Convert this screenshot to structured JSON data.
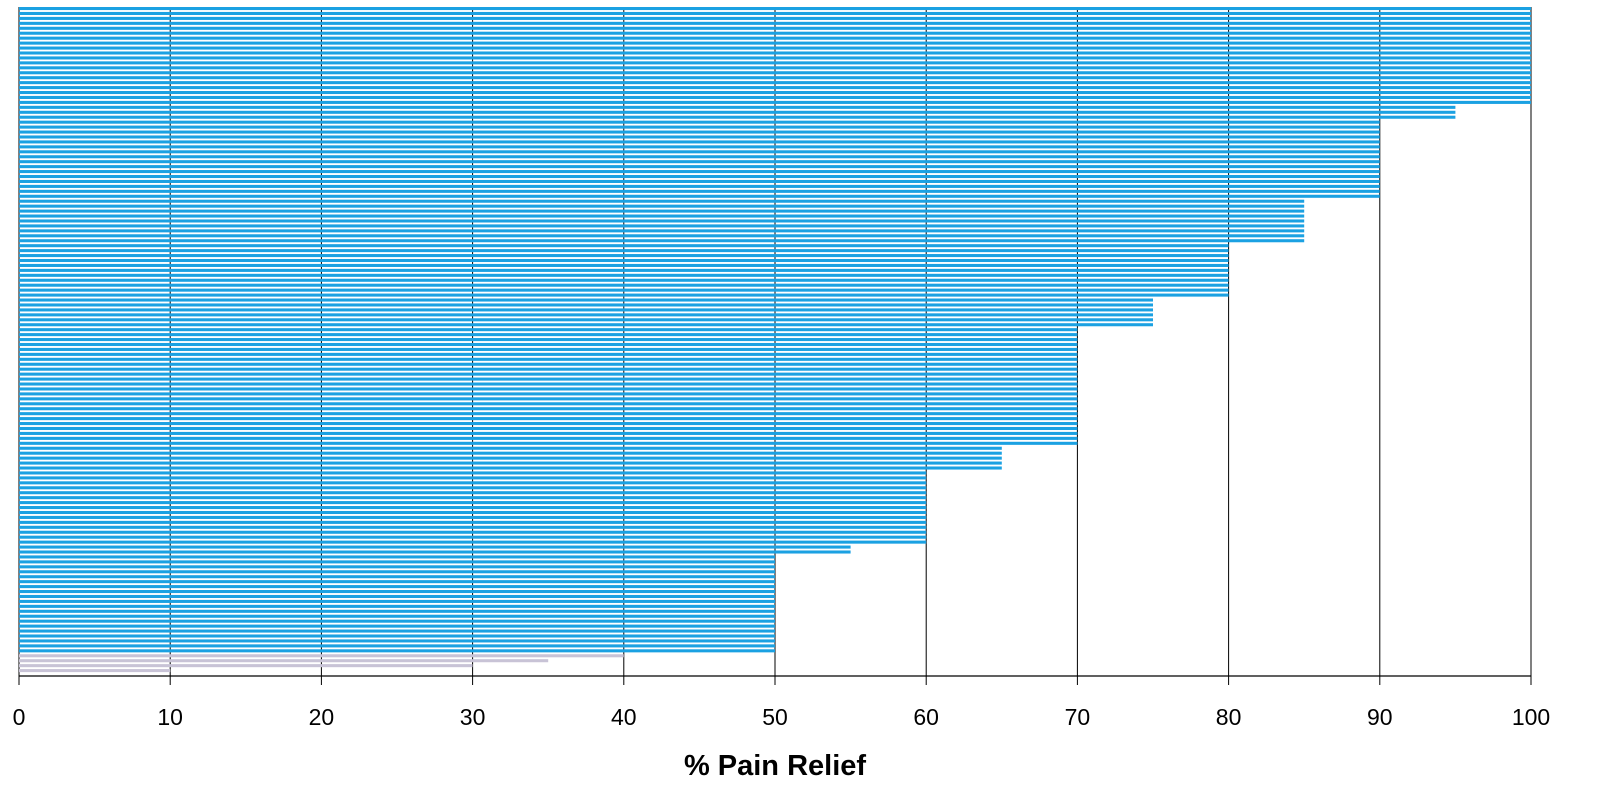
{
  "chart_data": {
    "type": "bar",
    "orientation": "horizontal",
    "title": "",
    "xlabel": "% Pain Relief",
    "ylabel": "",
    "xlim": [
      0,
      100
    ],
    "xticks": [
      "0",
      "10",
      "20",
      "30",
      "40",
      "50",
      "60",
      "70",
      "80",
      "90",
      "100"
    ],
    "grid": "vertical",
    "legend": "none",
    "colors": {
      "main": "#1BA1E2",
      "low": "#C8C3D6",
      "grid": "#000000"
    },
    "values": [
      100,
      100,
      100,
      100,
      100,
      100,
      100,
      100,
      100,
      100,
      100,
      100,
      100,
      100,
      100,
      100,
      100,
      100,
      100,
      100,
      95,
      95,
      95,
      90,
      90,
      90,
      90,
      90,
      90,
      90,
      90,
      90,
      90,
      90,
      90,
      90,
      90,
      90,
      90,
      85,
      85,
      85,
      85,
      85,
      85,
      85,
      85,
      85,
      80,
      80,
      80,
      80,
      80,
      80,
      80,
      80,
      80,
      80,
      80,
      75,
      75,
      75,
      75,
      75,
      75,
      70,
      70,
      70,
      70,
      70,
      70,
      70,
      70,
      70,
      70,
      70,
      70,
      70,
      70,
      70,
      70,
      70,
      70,
      70,
      70,
      70,
      70,
      70,
      70,
      65,
      65,
      65,
      65,
      65,
      60,
      60,
      60,
      60,
      60,
      60,
      60,
      60,
      60,
      60,
      60,
      60,
      60,
      60,
      60,
      55,
      55,
      50,
      50,
      50,
      50,
      50,
      50,
      50,
      50,
      50,
      50,
      50,
      50,
      50,
      50,
      50,
      50,
      50,
      50,
      50,
      50,
      40,
      35,
      30,
      10
    ],
    "low_threshold": 50
  }
}
